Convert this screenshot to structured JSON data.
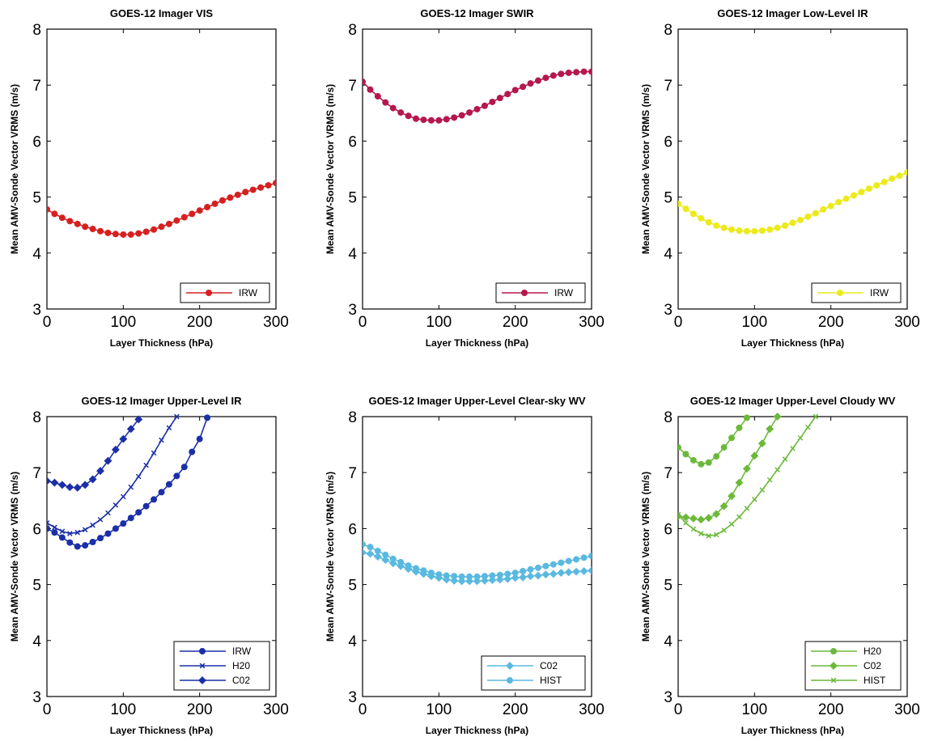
{
  "chart_data": [
    {
      "type": "line",
      "title": "GOES-12 Imager VIS",
      "xlabel": "Layer Thickness (hPa)",
      "ylabel": "Mean AMV-Sonde Vector VRMS (m/s)",
      "xlim": [
        0,
        300
      ],
      "ylim": [
        3,
        8
      ],
      "xticks": [
        0,
        100,
        200,
        300
      ],
      "yticks": [
        3,
        4,
        5,
        6,
        7,
        8
      ],
      "legend_position": "bottom-right",
      "x": [
        0,
        10,
        20,
        30,
        40,
        50,
        60,
        70,
        80,
        90,
        100,
        110,
        120,
        130,
        140,
        150,
        160,
        170,
        180,
        190,
        200,
        210,
        220,
        230,
        240,
        250,
        260,
        270,
        280,
        290,
        300
      ],
      "series": [
        {
          "name": "IRW",
          "color": "#d62020",
          "marker": "circle",
          "values": [
            4.78,
            4.7,
            4.63,
            4.57,
            4.52,
            4.47,
            4.43,
            4.39,
            4.36,
            4.34,
            4.33,
            4.33,
            4.35,
            4.38,
            4.42,
            4.47,
            4.52,
            4.58,
            4.64,
            4.7,
            4.76,
            4.82,
            4.88,
            4.94,
            4.99,
            5.04,
            5.09,
            5.13,
            5.17,
            5.21,
            5.25
          ]
        }
      ]
    },
    {
      "type": "line",
      "title": "GOES-12 Imager SWIR",
      "xlabel": "Layer Thickness (hPa)",
      "ylabel": "Mean AMV-Sonde Vector VRMS (m/s)",
      "xlim": [
        0,
        300
      ],
      "ylim": [
        3,
        8
      ],
      "xticks": [
        0,
        100,
        200,
        300
      ],
      "yticks": [
        3,
        4,
        5,
        6,
        7,
        8
      ],
      "legend_position": "bottom-right",
      "x": [
        0,
        10,
        20,
        30,
        40,
        50,
        60,
        70,
        80,
        90,
        100,
        110,
        120,
        130,
        140,
        150,
        160,
        170,
        180,
        190,
        200,
        210,
        220,
        230,
        240,
        250,
        260,
        270,
        280,
        290,
        300
      ],
      "series": [
        {
          "name": "IRW",
          "color": "#b5174f",
          "marker": "circle",
          "values": [
            7.06,
            6.92,
            6.8,
            6.69,
            6.59,
            6.51,
            6.45,
            6.4,
            6.38,
            6.37,
            6.37,
            6.39,
            6.42,
            6.46,
            6.51,
            6.57,
            6.63,
            6.7,
            6.77,
            6.84,
            6.91,
            6.97,
            7.03,
            7.08,
            7.13,
            7.17,
            7.2,
            7.22,
            7.23,
            7.24,
            7.24
          ]
        }
      ]
    },
    {
      "type": "line",
      "title": "GOES-12 Imager Low-Level IR",
      "xlabel": "Layer Thickness (hPa)",
      "ylabel": "Mean AMV-Sonde Vector VRMS (m/s)",
      "xlim": [
        0,
        300
      ],
      "ylim": [
        3,
        8
      ],
      "xticks": [
        0,
        100,
        200,
        300
      ],
      "yticks": [
        3,
        4,
        5,
        6,
        7,
        8
      ],
      "legend_position": "bottom-right",
      "x": [
        0,
        10,
        20,
        30,
        40,
        50,
        60,
        70,
        80,
        90,
        100,
        110,
        120,
        130,
        140,
        150,
        160,
        170,
        180,
        190,
        200,
        210,
        220,
        230,
        240,
        250,
        260,
        270,
        280,
        290,
        300
      ],
      "series": [
        {
          "name": "IRW",
          "color": "#ecea1c",
          "marker": "circle",
          "values": [
            4.88,
            4.79,
            4.7,
            4.62,
            4.55,
            4.49,
            4.45,
            4.42,
            4.4,
            4.39,
            4.39,
            4.4,
            4.42,
            4.45,
            4.49,
            4.54,
            4.59,
            4.65,
            4.71,
            4.78,
            4.84,
            4.91,
            4.97,
            5.03,
            5.09,
            5.15,
            5.21,
            5.27,
            5.33,
            5.38,
            5.44
          ]
        }
      ]
    },
    {
      "type": "line",
      "title": "GOES-12 Imager Upper-Level IR",
      "xlabel": "Layer Thickness (hPa)",
      "ylabel": "Mean AMV-Sonde Vector VRMS (m/s)",
      "xlim": [
        0,
        300
      ],
      "ylim": [
        3,
        8
      ],
      "xticks": [
        0,
        100,
        200,
        300
      ],
      "yticks": [
        3,
        4,
        5,
        6,
        7,
        8
      ],
      "legend_position": "bottom-right",
      "series": [
        {
          "name": "IRW",
          "color": "#1c2fa8",
          "marker": "circle",
          "x": [
            0,
            10,
            20,
            30,
            40,
            50,
            60,
            70,
            80,
            90,
            100,
            110,
            120,
            130,
            140,
            150,
            160,
            170,
            180,
            190,
            200,
            210
          ],
          "values": [
            6.0,
            5.93,
            5.84,
            5.75,
            5.68,
            5.7,
            5.76,
            5.83,
            5.91,
            6.0,
            6.09,
            6.19,
            6.29,
            6.4,
            6.52,
            6.65,
            6.79,
            6.94,
            7.1,
            7.37,
            7.6,
            7.98
          ]
        },
        {
          "name": "H20",
          "color": "#1c2fa8",
          "marker": "x",
          "x": [
            0,
            10,
            20,
            30,
            40,
            50,
            60,
            70,
            80,
            90,
            100,
            110,
            120,
            130,
            140,
            150,
            160,
            170
          ],
          "values": [
            6.1,
            6.02,
            5.95,
            5.91,
            5.93,
            5.98,
            6.06,
            6.16,
            6.28,
            6.42,
            6.57,
            6.74,
            6.93,
            7.13,
            7.35,
            7.58,
            7.8,
            8.0
          ]
        },
        {
          "name": "C02",
          "color": "#1c2fa8",
          "marker": "diamond",
          "x": [
            0,
            10,
            20,
            30,
            40,
            50,
            60,
            70,
            80,
            90,
            100,
            110,
            120
          ],
          "values": [
            6.85,
            6.82,
            6.78,
            6.74,
            6.73,
            6.78,
            6.88,
            7.03,
            7.21,
            7.41,
            7.6,
            7.78,
            7.95
          ]
        }
      ]
    },
    {
      "type": "line",
      "title": "GOES-12 Imager Upper-Level Clear-sky WV",
      "xlabel": "Layer Thickness (hPa)",
      "ylabel": "Mean AMV-Sonde Vector VRMS (m/s)",
      "xlim": [
        0,
        300
      ],
      "ylim": [
        3,
        8
      ],
      "xticks": [
        0,
        100,
        200,
        300
      ],
      "yticks": [
        3,
        4,
        5,
        6,
        7,
        8
      ],
      "legend_position": "bottom-right",
      "x": [
        0,
        10,
        20,
        30,
        40,
        50,
        60,
        70,
        80,
        90,
        100,
        110,
        120,
        130,
        140,
        150,
        160,
        170,
        180,
        190,
        200,
        210,
        220,
        230,
        240,
        250,
        260,
        270,
        280,
        290,
        300
      ],
      "series": [
        {
          "name": "C02",
          "color": "#5bb9e0",
          "marker": "diamond",
          "values": [
            5.57,
            5.55,
            5.5,
            5.44,
            5.38,
            5.33,
            5.28,
            5.23,
            5.19,
            5.15,
            5.12,
            5.09,
            5.07,
            5.06,
            5.06,
            5.06,
            5.07,
            5.08,
            5.09,
            5.1,
            5.12,
            5.13,
            5.15,
            5.16,
            5.18,
            5.19,
            5.21,
            5.22,
            5.23,
            5.24,
            5.25
          ]
        },
        {
          "name": "HIST",
          "color": "#5bb9e0",
          "marker": "circle",
          "values": [
            5.72,
            5.67,
            5.6,
            5.53,
            5.46,
            5.4,
            5.34,
            5.29,
            5.25,
            5.21,
            5.18,
            5.16,
            5.15,
            5.14,
            5.14,
            5.14,
            5.15,
            5.16,
            5.17,
            5.19,
            5.21,
            5.24,
            5.27,
            5.3,
            5.33,
            5.36,
            5.39,
            5.42,
            5.45,
            5.48,
            5.51
          ]
        }
      ]
    },
    {
      "type": "line",
      "title": "GOES-12 Imager Upper-Level Cloudy WV",
      "xlabel": "Layer Thickness (hPa)",
      "ylabel": "Mean AMV-Sonde Vector VRMS (m/s)",
      "xlim": [
        0,
        300
      ],
      "ylim": [
        3,
        8
      ],
      "xticks": [
        0,
        100,
        200,
        300
      ],
      "yticks": [
        3,
        4,
        5,
        6,
        7,
        8
      ],
      "legend_position": "bottom-right",
      "series": [
        {
          "name": "H20",
          "color": "#6cb93a",
          "marker": "circle",
          "x": [
            0,
            10,
            20,
            30,
            40,
            50,
            60,
            70,
            80,
            90
          ],
          "values": [
            7.45,
            7.33,
            7.22,
            7.15,
            7.18,
            7.29,
            7.45,
            7.62,
            7.8,
            7.98
          ]
        },
        {
          "name": "C02",
          "color": "#6cb93a",
          "marker": "diamond",
          "x": [
            0,
            10,
            20,
            30,
            40,
            50,
            60,
            70,
            80,
            90,
            100,
            110,
            120,
            130
          ],
          "values": [
            6.22,
            6.2,
            6.18,
            6.16,
            6.19,
            6.26,
            6.4,
            6.58,
            6.82,
            7.07,
            7.3,
            7.52,
            7.78,
            8.0
          ]
        },
        {
          "name": "HIST",
          "color": "#6cb93a",
          "marker": "x",
          "x": [
            0,
            10,
            20,
            30,
            40,
            50,
            60,
            70,
            80,
            90,
            100,
            110,
            120,
            130,
            140,
            150,
            160,
            170,
            180
          ],
          "values": [
            6.25,
            6.1,
            5.99,
            5.91,
            5.87,
            5.89,
            5.97,
            6.08,
            6.21,
            6.36,
            6.52,
            6.69,
            6.87,
            7.05,
            7.24,
            7.43,
            7.62,
            7.81,
            8.0
          ]
        }
      ]
    }
  ]
}
